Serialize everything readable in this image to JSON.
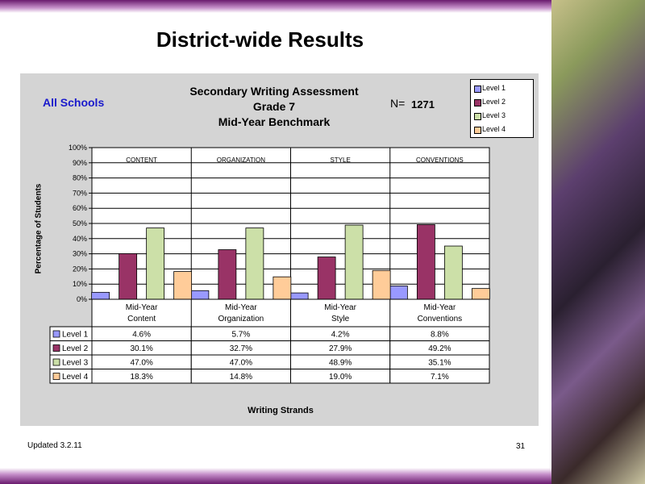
{
  "slide": {
    "title": "District-wide Results",
    "footer_left": "Updated  3.2.11",
    "page_number": "31"
  },
  "chart_data": {
    "type": "bar",
    "scope_label": "All Schools",
    "title_lines": [
      "Secondary Writing Assessment",
      "Grade 7",
      "Mid-Year Benchmark"
    ],
    "n_label": "N=",
    "n_value": "1271",
    "ylabel": "Percentage of Students",
    "xlabel": "Writing Strands",
    "ylim": [
      0,
      100
    ],
    "yticks": [
      "0%",
      "10%",
      "20%",
      "30%",
      "40%",
      "50%",
      "60%",
      "70%",
      "80%",
      "90%",
      "100%"
    ],
    "group_headers": [
      "CONTENT",
      "ORGANIZATION",
      "STYLE",
      "CONVENTIONS"
    ],
    "categories": [
      [
        "Mid-Year",
        "Content"
      ],
      [
        "Mid-Year",
        "Organization"
      ],
      [
        "Mid-Year",
        "Style"
      ],
      [
        "Mid-Year",
        "Conventions"
      ]
    ],
    "series": [
      {
        "name": "Level 1",
        "color": "#9999ff",
        "values": [
          4.6,
          5.7,
          4.2,
          8.8
        ],
        "labels": [
          "4.6%",
          "5.7%",
          "4.2%",
          "8.8%"
        ]
      },
      {
        "name": "Level 2",
        "color": "#993366",
        "values": [
          30.1,
          32.7,
          27.9,
          49.2
        ],
        "labels": [
          "30.1%",
          "32.7%",
          "27.9%",
          "49.2%"
        ]
      },
      {
        "name": "Level 3",
        "color": "#cce0a8",
        "values": [
          47.0,
          47.0,
          48.9,
          35.1
        ],
        "labels": [
          "47.0%",
          "47.0%",
          "48.9%",
          "35.1%"
        ]
      },
      {
        "name": "Level 4",
        "color": "#ffcc99",
        "values": [
          18.3,
          14.8,
          19.0,
          7.1
        ],
        "labels": [
          "18.3%",
          "14.8%",
          "19.0%",
          "7.1%"
        ]
      }
    ],
    "legend_position": "top-right",
    "grid": true
  }
}
